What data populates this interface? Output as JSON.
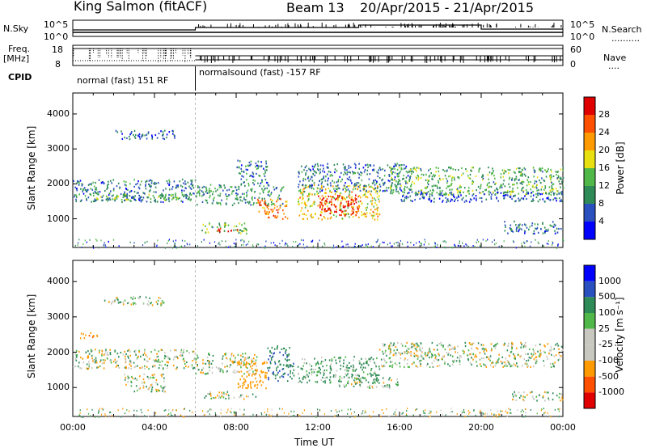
{
  "header": {
    "station": "King Salmon (fitACF)",
    "beam": "Beam 13",
    "date_range": "20/Apr/2015 - 21/Apr/2015"
  },
  "status_labels": {
    "n_sky": "N.Sky",
    "freq_line1": "Freq.",
    "freq_line2": "[MHz]",
    "cpid": "CPID",
    "n_search": "N.Search",
    "n_search_dots": "..........",
    "nave": "Nave",
    "nave_dots": "....",
    "noise_tick_hi": "10^5",
    "noise_tick_lo": "10^0",
    "freq_tick_hi": "18",
    "freq_tick_lo": "8",
    "nave_tick_hi": "60",
    "nave_tick_lo": "0"
  },
  "cpid_segments": [
    {
      "label": "normal (fast) 151 RF",
      "start_hour": 0,
      "end_hour": 6
    },
    {
      "label": "normalsound (fast) -157 RF",
      "start_hour": 6,
      "end_hour": 24
    }
  ],
  "power_colorbar": {
    "label": "Power [dB]",
    "ticks": [
      "28",
      "24",
      "20",
      "16",
      "12",
      "8",
      "4"
    ],
    "colors": [
      "#0000ff",
      "#2a4fbf",
      "#2e8b57",
      "#50b848",
      "#e8e010",
      "#ff9a00",
      "#ff5000",
      "#e00000"
    ]
  },
  "velocity_colorbar": {
    "label": "Velocity [m s⁻¹]",
    "ticks": [
      "1000",
      "500",
      "100",
      "25",
      "-25",
      "-100",
      "-500",
      "-1000"
    ],
    "colors": [
      "#e00000",
      "#ff5000",
      "#ff9a00",
      "#c8c8c0",
      "#c8c8c0",
      "#50b848",
      "#2e8b57",
      "#2a4fbf",
      "#0000ff"
    ]
  },
  "chart_data": [
    {
      "type": "heatmap",
      "panel": "power",
      "ylabel": "Slant Range [km]",
      "xlabel": "",
      "ylim": [
        180,
        4600
      ],
      "xlim": [
        0,
        24
      ],
      "yticks": [
        1000,
        2000,
        3000,
        4000
      ],
      "colorbar_label": "Power [dB]",
      "colorbar_range": [
        0,
        30
      ],
      "echo_regions": [
        {
          "t0": 0.0,
          "t1": 6.0,
          "r0": 1500,
          "r1": 2150,
          "value": 8
        },
        {
          "t0": 0.8,
          "t1": 5.8,
          "r0": 1550,
          "r1": 1750,
          "value": 12
        },
        {
          "t0": 6.0,
          "t1": 10.3,
          "r0": 1400,
          "r1": 2000,
          "value": 10
        },
        {
          "t0": 8.0,
          "t1": 9.5,
          "r0": 2000,
          "r1": 2700,
          "value": 8
        },
        {
          "t0": 6.3,
          "t1": 8.5,
          "r0": 600,
          "r1": 900,
          "value": 12
        },
        {
          "t0": 7.0,
          "t1": 8.3,
          "r0": 650,
          "r1": 750,
          "value": 26
        },
        {
          "t0": 9.0,
          "t1": 10.5,
          "r0": 1000,
          "r1": 1600,
          "value": 22
        },
        {
          "t0": 11.0,
          "t1": 15.0,
          "r0": 1000,
          "r1": 2000,
          "value": 18
        },
        {
          "t0": 12.0,
          "t1": 14.0,
          "r0": 1100,
          "r1": 1700,
          "value": 28
        },
        {
          "t0": 11.0,
          "t1": 16.5,
          "r0": 1800,
          "r1": 2600,
          "value": 8
        },
        {
          "t0": 15.5,
          "t1": 24.0,
          "r0": 1700,
          "r1": 2500,
          "value": 12
        },
        {
          "t0": 16.0,
          "t1": 24.0,
          "r0": 1500,
          "r1": 1800,
          "value": 6
        },
        {
          "t0": 21.0,
          "t1": 24.0,
          "r0": 600,
          "r1": 950,
          "value": 8
        },
        {
          "t0": 2.0,
          "t1": 5.0,
          "r0": 3300,
          "r1": 3550,
          "value": 6
        }
      ]
    },
    {
      "type": "heatmap",
      "panel": "velocity",
      "ylabel": "Slant Range [km]",
      "xlabel": "Time UT",
      "ylim": [
        180,
        4600
      ],
      "xlim": [
        0,
        24
      ],
      "xticks": [
        "00:00",
        "04:00",
        "08:00",
        "12:00",
        "16:00",
        "20:00",
        "00:00"
      ],
      "yticks": [
        1000,
        2000,
        3000,
        4000
      ],
      "colorbar_label": "Velocity [m s⁻¹]",
      "colorbar_range": [
        -1000,
        1000
      ],
      "echo_regions": [
        {
          "t0": 0.0,
          "t1": 6.0,
          "r0": 1550,
          "r1": 2100,
          "value": 0
        },
        {
          "t0": 1.5,
          "t1": 4.5,
          "r0": 3350,
          "r1": 3600,
          "value": 0
        },
        {
          "t0": 2.5,
          "t1": 4.5,
          "r0": 900,
          "r1": 1400,
          "value": 0
        },
        {
          "t0": 6.0,
          "t1": 9.0,
          "r0": 1400,
          "r1": 2000,
          "value": 0
        },
        {
          "t0": 8.0,
          "t1": 9.5,
          "r0": 1000,
          "r1": 1800,
          "value": -300
        },
        {
          "t0": 9.5,
          "t1": 10.8,
          "r0": 1200,
          "r1": 2200,
          "value": 400
        },
        {
          "t0": 6.3,
          "t1": 9.0,
          "r0": 700,
          "r1": 900,
          "value": 0
        },
        {
          "t0": 11.0,
          "t1": 15.0,
          "r0": 1150,
          "r1": 1900,
          "value": 150
        },
        {
          "t0": 13.0,
          "t1": 16.0,
          "r0": 1000,
          "r1": 1300,
          "value": 60
        },
        {
          "t0": 15.0,
          "t1": 24.0,
          "r0": 1600,
          "r1": 2300,
          "value": 0
        },
        {
          "t0": 21.5,
          "t1": 24.0,
          "r0": 650,
          "r1": 900,
          "value": 0
        },
        {
          "t0": 0.3,
          "t1": 1.2,
          "r0": 2400,
          "r1": 2600,
          "value": -500
        }
      ]
    }
  ]
}
